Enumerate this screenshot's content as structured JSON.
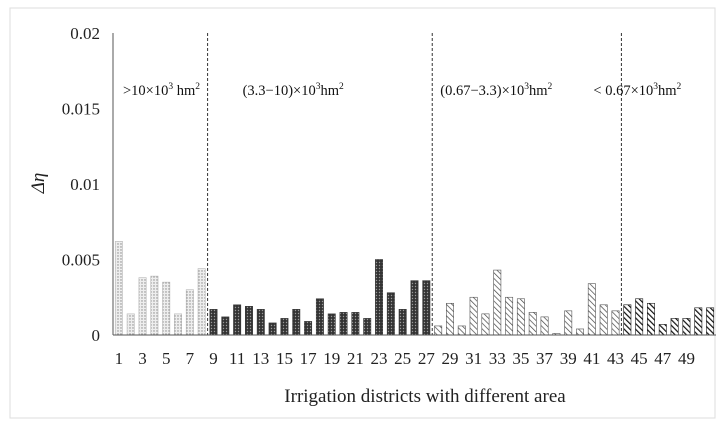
{
  "chart_data": {
    "type": "bar",
    "xlabel": "Irrigation districts with different area",
    "ylabel": "Δη",
    "ylim": [
      0,
      0.02
    ],
    "yticks": [
      "0",
      "0.005",
      "0.01",
      "0.015",
      "0.02"
    ],
    "yticks_values": [
      0,
      0.005,
      0.01,
      0.015,
      0.02
    ],
    "xtick_labels": [
      "1",
      "3",
      "5",
      "7",
      "9",
      "11",
      "13",
      "15",
      "17",
      "19",
      "21",
      "23",
      "25",
      "27",
      "29",
      "31",
      "33",
      "35",
      "37",
      "39",
      "41",
      "43",
      "45",
      "47",
      "49"
    ],
    "grid": false,
    "categories": [
      1,
      2,
      3,
      4,
      5,
      6,
      7,
      8,
      9,
      10,
      11,
      12,
      13,
      14,
      15,
      16,
      17,
      18,
      19,
      20,
      21,
      22,
      23,
      24,
      25,
      26,
      27,
      28,
      29,
      30,
      31,
      32,
      33,
      34,
      35,
      36,
      37,
      38,
      39,
      40,
      41,
      42,
      43,
      44,
      45,
      46,
      47,
      48,
      49,
      50,
      51
    ],
    "values": [
      0.0062,
      0.0014,
      0.0038,
      0.0039,
      0.0035,
      0.0014,
      0.003,
      0.0044,
      0.0017,
      0.0012,
      0.002,
      0.0019,
      0.0017,
      0.0008,
      0.0011,
      0.0017,
      0.0009,
      0.0024,
      0.0014,
      0.0015,
      0.0015,
      0.0011,
      0.005,
      0.0028,
      0.0017,
      0.0036,
      0.0036,
      0.0006,
      0.0021,
      0.0006,
      0.0025,
      0.0014,
      0.0043,
      0.0025,
      0.0024,
      0.0015,
      0.0012,
      0.0001,
      0.0016,
      0.0004,
      0.0034,
      0.002,
      0.0016,
      0.002,
      0.0024,
      0.0021,
      0.0007,
      0.0011,
      0.0011,
      0.0018,
      0.0018
    ],
    "groups": [
      {
        "label_main": ">10×10",
        "label_sup": "3",
        "label_tail": " hm",
        "label_sup2": "2",
        "start": 1,
        "end": 8,
        "pattern": "dots-light",
        "color": "#b8b8b8"
      },
      {
        "label_main": "(3.3−10)×10",
        "label_sup": "3",
        "label_tail": "hm",
        "label_sup2": "2",
        "start": 9,
        "end": 27,
        "pattern": "dots-dark",
        "color": "#3a3a3a"
      },
      {
        "label_main": "(0.67−3.3)×10",
        "label_sup": "3",
        "label_tail": "hm",
        "label_sup2": "2",
        "start": 28,
        "end": 43,
        "pattern": "diag-light",
        "color": "#555555"
      },
      {
        "label_main": "< 0.67×10",
        "label_sup": "3",
        "label_tail": "hm",
        "label_sup2": "2",
        "start": 44,
        "end": 51,
        "pattern": "diag-dark",
        "color": "#1a1a1a"
      }
    ]
  }
}
